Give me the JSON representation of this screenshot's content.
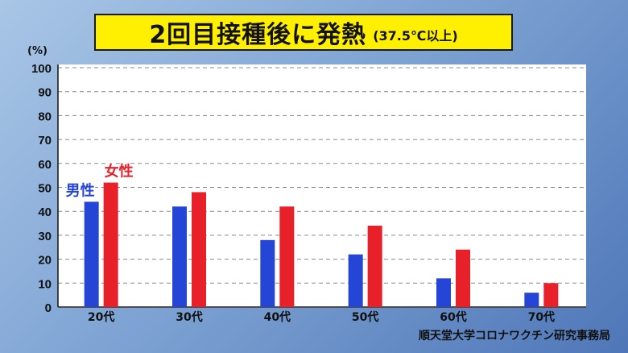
{
  "title": {
    "main": "2回目接種後に発熱",
    "sub": "(37.5℃以上)"
  },
  "unit_label": "(%)",
  "source": "順天堂大学コロナワクチン研究事務局",
  "colors": {
    "male": "#2445d6",
    "female": "#e8202a",
    "title_bg": "#ffef00"
  },
  "chart_data": {
    "type": "bar",
    "categories": [
      "20代",
      "30代",
      "40代",
      "50代",
      "60代",
      "70代"
    ],
    "series": [
      {
        "name": "男性",
        "values": [
          44,
          42,
          28,
          22,
          12,
          6
        ]
      },
      {
        "name": "女性",
        "values": [
          52,
          48,
          42,
          34,
          24,
          10
        ]
      }
    ],
    "ylim": [
      0,
      100
    ],
    "yticks": [
      0,
      10,
      20,
      30,
      40,
      50,
      60,
      70,
      80,
      90,
      100
    ],
    "grid": true
  }
}
